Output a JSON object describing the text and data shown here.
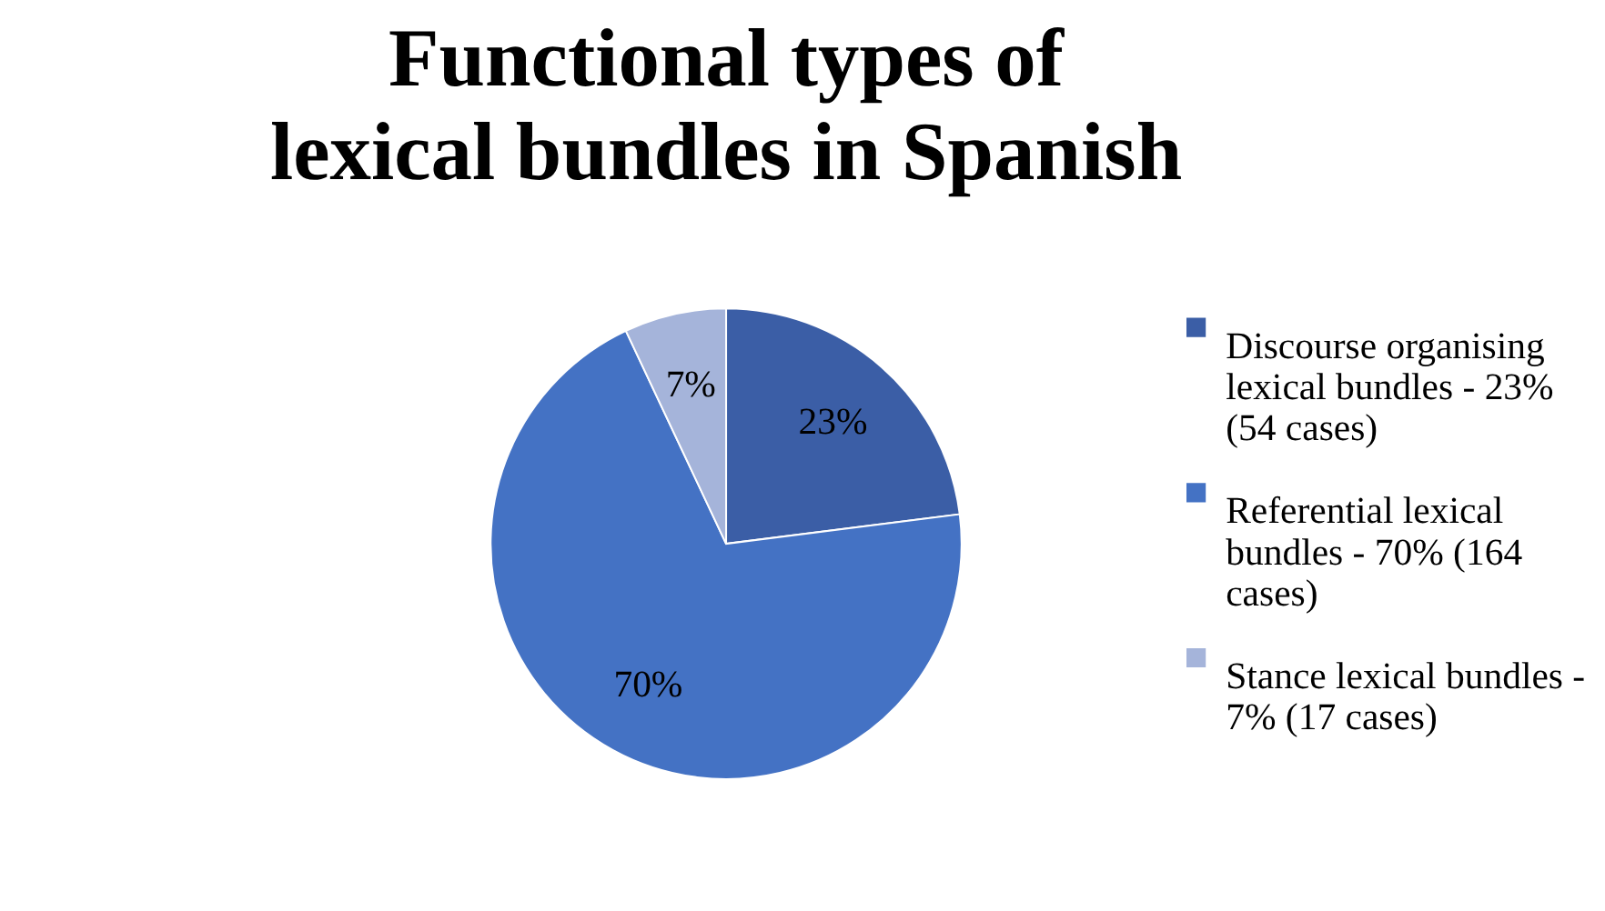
{
  "chart_data": {
    "type": "pie",
    "title": "Functional types of lexical bundles in Spanish",
    "categories": [
      "Discourse organising lexical bundles - 23% (54 cases)",
      "Referential lexical bundles - 70% (164 cases)",
      "Stance lexical bundles - 7% (17 cases)"
    ],
    "values": [
      23,
      70,
      7
    ],
    "colors": [
      "#3b5ea6",
      "#4472c4",
      "#a5b4da"
    ],
    "value_labels": [
      "23%",
      "70%",
      "7%"
    ],
    "legend": "right"
  }
}
